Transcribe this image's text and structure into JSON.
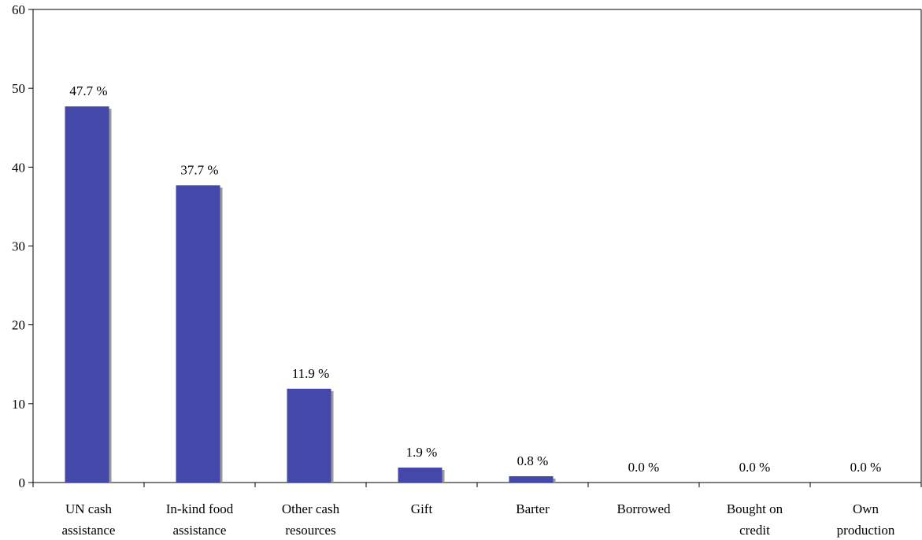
{
  "chart_data": {
    "type": "bar",
    "title": "",
    "xlabel": "",
    "ylabel": "",
    "ylim": [
      0,
      60
    ],
    "yticks": [
      0,
      10,
      20,
      30,
      40,
      50,
      60
    ],
    "grid": false,
    "categories": [
      [
        "UN cash",
        "assistance"
      ],
      [
        "In-kind food",
        "assistance"
      ],
      [
        "Other cash",
        "resources"
      ],
      [
        "Gift"
      ],
      [
        "Barter"
      ],
      [
        "Borrowed"
      ],
      [
        "Bought on",
        "credit"
      ],
      [
        "Own",
        "production"
      ]
    ],
    "values": [
      47.7,
      37.7,
      11.9,
      1.9,
      0.8,
      0.0,
      0.0,
      0.0
    ],
    "data_labels": [
      "47.7 %",
      "37.7 %",
      "11.9 %",
      "1.9 %",
      "0.8 %",
      "0.0 %",
      "0.0 %",
      "0.0 %"
    ],
    "colors": {
      "bar": "#4448a8",
      "bar_shadow": "#9a9a9a"
    }
  }
}
